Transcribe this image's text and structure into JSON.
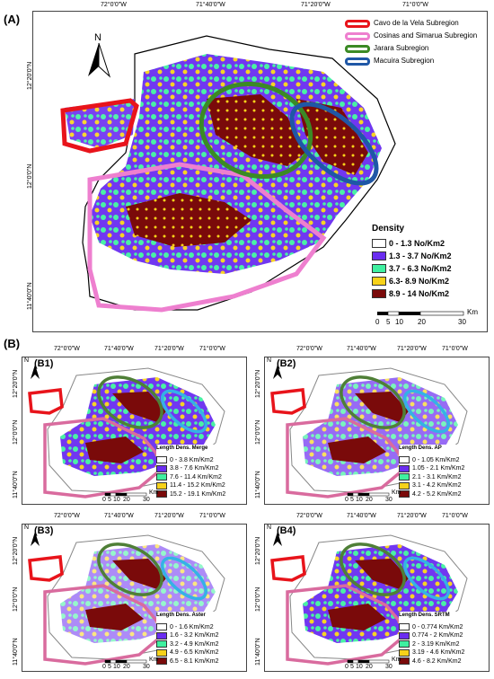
{
  "figure": {
    "panel_a_label": "(A)",
    "panel_b_label": "(B)",
    "sub_panels": [
      {
        "label": "(B1)",
        "legend_title": "Length Dens. Merge",
        "classes": [
          "0 - 3.8 Km/Km2",
          "3.8 - 7.6 Km/Km2",
          "7.6 - 11.4 Km/Km2",
          "11.4 - 15.2 Km/Km2",
          "15.2 - 19.1 Km/Km2"
        ]
      },
      {
        "label": "(B2)",
        "legend_title": "Length Dens. AP",
        "classes": [
          "0 - 1.05 Km/Km2",
          "1.05 - 2.1 Km/Km2",
          "2.1 - 3.1 Km/Km2",
          "3.1 - 4.2 Km/Km2",
          "4.2 - 5.2 Km/Km2"
        ]
      },
      {
        "label": "(B3)",
        "legend_title": "Length Dens. Aster",
        "classes": [
          "0 - 1.6 Km/Km2",
          "1.6 - 3.2 Km/Km2",
          "3.2 - 4.9 Km/Km2",
          "4.9 - 6.5 Km/Km2",
          "6.5 - 8.1 Km/Km2"
        ]
      },
      {
        "label": "(B4)",
        "legend_title": "Length Dens. SRTM",
        "classes": [
          "0 - 0.774 Km/Km2",
          "0.774 - 2 Km/Km2",
          "2 - 3.19 Km/Km2",
          "3.19 - 4.6 Km/Km2",
          "4.6 - 8.2 Km/Km2"
        ]
      }
    ]
  },
  "axes": {
    "lon_labels": [
      "72°0'0\"W",
      "71°40'0\"W",
      "71°20'0\"W",
      "71°0'0\"W"
    ],
    "lat_labels": [
      "12°20'0\"N",
      "12°0'0\"N",
      "11°40'0\"N"
    ]
  },
  "north_arrow": "N",
  "subregions": {
    "items": [
      {
        "name": "Cavo de la Vela Subregion",
        "color": "#e8141b"
      },
      {
        "name": "Cosinas and Simarua Subregion",
        "color": "#ee7fcf"
      },
      {
        "name": "Jarara Subregion",
        "color": "#3b8a25"
      },
      {
        "name": "Macuira Subregion",
        "color": "#1f57a6"
      }
    ]
  },
  "density_legend": {
    "title": "Density",
    "classes": [
      "0 - 1.3 No/Km2",
      "1.3 - 3.7 No/Km2",
      "3.7 - 6.3 No/Km2",
      "6.3- 8.9 No/Km2",
      "8.9 - 14 No/Km2"
    ]
  },
  "class_colors": [
    "#ffffff",
    "#6a2cf0",
    "#3ff0a0",
    "#f7d21a",
    "#7a0a0a"
  ],
  "scalebar": {
    "unit": "Km",
    "labels": [
      "0",
      "5",
      "10",
      "20",
      "30"
    ],
    "labels_small": [
      "0",
      "5",
      "10",
      "20",
      "30"
    ]
  }
}
